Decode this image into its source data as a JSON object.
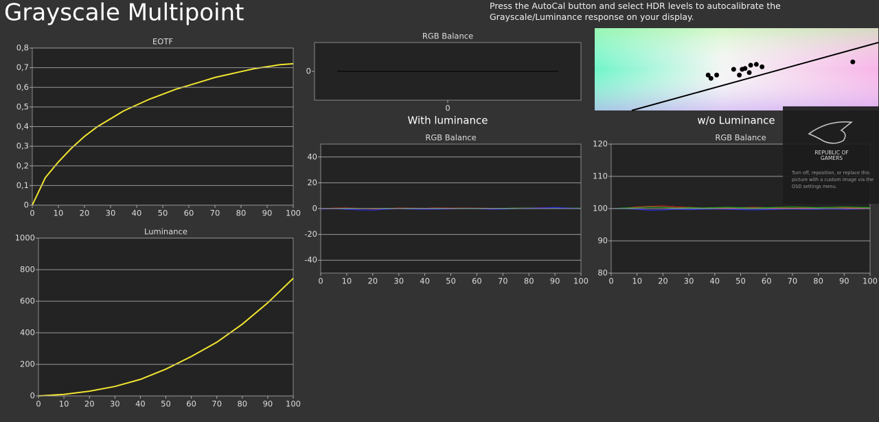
{
  "header": {
    "title": "Grayscale Multipoint",
    "instructions": "Press the AutoCal button and select HDR levels to autocalibrate the Grayscale/Luminance response on your display."
  },
  "sections": {
    "with": "With luminance",
    "without": "w/o Luminance"
  },
  "overlay": {
    "brand_line1": "REPUBLIC OF",
    "brand_line2": "GAMERS",
    "note": "Turn off, reposition, or replace this picture with a custom image via the OSD settings menu."
  },
  "chart_data": [
    {
      "type": "line",
      "title": "EOTF",
      "x": [
        0,
        5,
        10,
        15,
        20,
        25,
        30,
        35,
        40,
        45,
        50,
        55,
        60,
        65,
        70,
        75,
        80,
        85,
        90,
        95,
        100
      ],
      "series": [
        {
          "color": "#f2e530",
          "values": [
            0,
            0.14,
            0.22,
            0.29,
            0.35,
            0.4,
            0.44,
            0.48,
            0.51,
            0.54,
            0.565,
            0.59,
            0.61,
            0.63,
            0.65,
            0.665,
            0.68,
            0.695,
            0.705,
            0.715,
            0.72
          ]
        }
      ],
      "xlim": [
        0,
        100
      ],
      "xticks": [
        0,
        10,
        20,
        30,
        40,
        50,
        60,
        70,
        80,
        90,
        100
      ],
      "ylim": [
        0,
        0.8
      ],
      "yticks": [
        0,
        {
          "value": 0.1,
          "label": "0,1"
        },
        {
          "value": 0.2,
          "label": "0,2"
        },
        {
          "value": 0.3,
          "label": "0,3"
        },
        {
          "value": 0.4,
          "label": "0,4"
        },
        {
          "value": 0.5,
          "label": "0,5"
        },
        {
          "value": 0.6,
          "label": "0,6"
        },
        {
          "value": 0.7,
          "label": "0,7"
        },
        {
          "value": 0.8,
          "label": "0,8"
        }
      ],
      "grid": true
    },
    {
      "type": "line",
      "title": "RGB Balance",
      "x": [
        -0.83,
        0.83
      ],
      "series": [
        {
          "color": "#111111",
          "values": [
            0,
            0
          ]
        }
      ],
      "xlim": [
        -1,
        1
      ],
      "xticks": [
        0
      ],
      "ylim": [
        -1,
        1
      ],
      "yticks": [
        0
      ],
      "grid": false
    },
    {
      "type": "line",
      "title": "Luminance",
      "x": [
        0,
        10,
        20,
        30,
        40,
        50,
        60,
        70,
        80,
        90,
        100
      ],
      "series": [
        {
          "color": "#f2e530",
          "values": [
            0,
            10,
            30,
            60,
            105,
            170,
            250,
            340,
            455,
            590,
            745
          ]
        }
      ],
      "xlim": [
        0,
        100
      ],
      "xticks": [
        0,
        10,
        20,
        30,
        40,
        50,
        60,
        70,
        80,
        90,
        100
      ],
      "ylim": [
        0,
        1000
      ],
      "yticks": [
        0,
        200,
        400,
        600,
        800,
        1000
      ],
      "grid": true
    },
    {
      "type": "line",
      "title": "RGB Balance",
      "x": [
        0,
        5,
        10,
        15,
        20,
        25,
        30,
        35,
        40,
        45,
        50,
        55,
        60,
        65,
        70,
        75,
        80,
        85,
        90,
        95,
        100
      ],
      "series": [
        {
          "color": "#e02020",
          "values": [
            0,
            0.3,
            0.5,
            0.2,
            -0.2,
            0,
            0.4,
            0.3,
            0.2,
            0.5,
            0.3,
            0.4,
            0.3,
            0.2,
            0.1,
            0.3,
            0.5,
            0.6,
            0.5,
            0.3,
            0.2
          ]
        },
        {
          "color": "#20a020",
          "values": [
            0,
            0.1,
            0.2,
            0.1,
            0.1,
            0.2,
            0.1,
            0.2,
            0.1,
            0.2,
            0.1,
            0.2,
            0.2,
            0.1,
            0.2,
            0.3,
            0.4,
            0.5,
            0.6,
            0.4,
            0.3
          ]
        },
        {
          "color": "#2a2af0",
          "values": [
            -0.3,
            0,
            -0.5,
            -1,
            -1.2,
            -0.4,
            0,
            -0.3,
            -0.5,
            -0.4,
            -0.2,
            0,
            0,
            -0.5,
            -0.3,
            0,
            0.2,
            0.5,
            0.8,
            0.3,
            0
          ]
        }
      ],
      "xlim": [
        0,
        100
      ],
      "xticks": [
        0,
        10,
        20,
        30,
        40,
        50,
        60,
        70,
        80,
        90,
        100
      ],
      "ylim": [
        -50,
        50
      ],
      "yticks": [
        -40,
        -20,
        0,
        20,
        40
      ],
      "grid": true
    },
    {
      "type": "line",
      "title": "RGB Balance",
      "x": [
        0,
        5,
        10,
        15,
        20,
        25,
        30,
        35,
        40,
        45,
        50,
        55,
        60,
        65,
        70,
        75,
        80,
        85,
        90,
        95,
        100
      ],
      "series": [
        {
          "color": "#e02020",
          "values": [
            100,
            100.1,
            100.5,
            100.7,
            100.8,
            100.5,
            100.4,
            100.2,
            100.3,
            100.2,
            100.3,
            100.4,
            100.3,
            100.2,
            100.1,
            100.2,
            100.3,
            100.4,
            100.3,
            100.2,
            100.1
          ]
        },
        {
          "color": "#20a020",
          "values": [
            100,
            100.2,
            100.3,
            100.5,
            100.4,
            100.2,
            100.3,
            100.2,
            100.3,
            100.4,
            100.3,
            100.2,
            100.3,
            100.4,
            100.5,
            100.4,
            100.3,
            100.4,
            100.5,
            100.4,
            100.3
          ]
        },
        {
          "color": "#2a2af0",
          "values": [
            100,
            100,
            99.8,
            99.5,
            99.6,
            99.8,
            99.7,
            99.8,
            99.9,
            99.8,
            99.7,
            99.6,
            99.7,
            99.8,
            99.9,
            99.8,
            99.8,
            99.9,
            99.8,
            99.9,
            100
          ]
        }
      ],
      "xlim": [
        0,
        100
      ],
      "xticks": [
        0,
        10,
        20,
        30,
        40,
        50,
        60,
        70,
        80,
        90,
        100
      ],
      "ylim": [
        80,
        120
      ],
      "yticks": [
        80,
        90,
        100,
        110,
        120
      ],
      "grid": true
    },
    {
      "type": "scatter",
      "x": [
        0.4,
        0.41,
        0.43,
        0.49,
        0.51,
        0.52,
        0.53,
        0.545,
        0.55,
        0.57,
        0.59,
        0.91
      ],
      "values": [
        0.43,
        0.39,
        0.43,
        0.5,
        0.43,
        0.5,
        0.51,
        0.46,
        0.55,
        0.56,
        0.53,
        0.59
      ],
      "xlim": [
        0,
        1
      ],
      "ylim": [
        0,
        1
      ],
      "color": "#000000"
    }
  ]
}
